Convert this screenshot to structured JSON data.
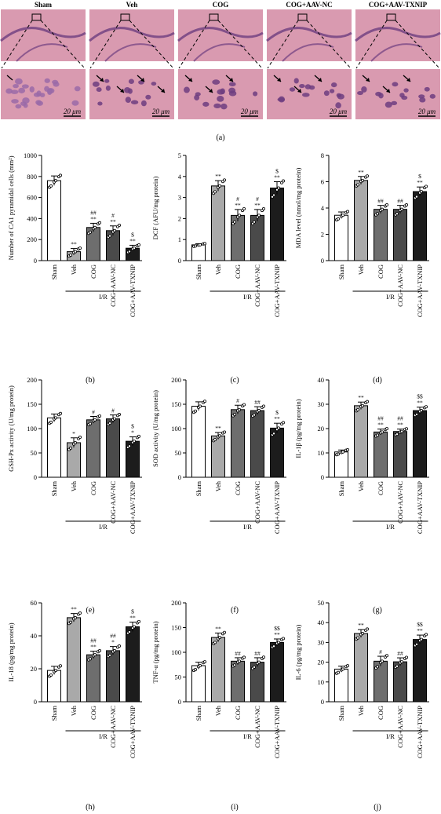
{
  "micrographs": {
    "groups": [
      "Sham",
      "Veh",
      "COG",
      "COG+AAV-NC",
      "COG+AAV-TXNIP"
    ],
    "scale_label": "20 μm",
    "panel_label": "(a)"
  },
  "colors": {
    "tissue_pink": "#d99ab0",
    "tissue_purple": "#6d3d80",
    "bar_fills": [
      "#ffffff",
      "#a9a9a9",
      "#6e6e6e",
      "#4a4a4a",
      "#1c1c1c"
    ]
  },
  "chart_data": [
    {
      "type": "bar",
      "panel": "(b)",
      "categories": [
        "Sham",
        "Veh",
        "COG",
        "COG+AAV-NC",
        "COG+AAV-TXNIP"
      ],
      "values": [
        760,
        85,
        315,
        285,
        118
      ],
      "errors": [
        45,
        30,
        40,
        45,
        28
      ],
      "significance": [
        "",
        "**",
        "##\n**",
        "#\n**",
        "$\n**"
      ],
      "ylabel": "Number of CA1 pyramidal cells (mm²)",
      "ylim": [
        0,
        1000
      ],
      "yticks": [
        0,
        200,
        400,
        600,
        800,
        1000
      ],
      "ytick_labels": [
        "0",
        "200",
        "400",
        "600",
        "800",
        "1000"
      ],
      "group_label": "I/R"
    },
    {
      "type": "bar",
      "panel": "(c)",
      "categories": [
        "Sham",
        "Veh",
        "COG",
        "COG+AAV-NC",
        "COG+AAV-TXNIP"
      ],
      "values": [
        0.75,
        3.55,
        2.15,
        2.15,
        3.45
      ],
      "errors": [
        0.05,
        0.25,
        0.28,
        0.28,
        0.3
      ],
      "significance": [
        "",
        "**",
        "#\n**",
        "#\n**",
        "$\n**"
      ],
      "ylabel": "DCF (AFU/mg protein)",
      "ylim": [
        0,
        5
      ],
      "yticks": [
        0,
        1,
        2,
        3,
        4,
        5
      ],
      "ytick_labels": [
        "0",
        "1",
        "2",
        "3",
        "4",
        "5"
      ],
      "group_label": "I/R"
    },
    {
      "type": "bar",
      "panel": "(d)",
      "categories": [
        "Sham",
        "Veh",
        "COG",
        "COG+AAV-NC",
        "COG+AAV-TXNIP"
      ],
      "values": [
        3.45,
        6.1,
        3.9,
        3.9,
        5.25
      ],
      "errors": [
        0.25,
        0.3,
        0.3,
        0.3,
        0.35
      ],
      "significance": [
        "",
        "**",
        "##",
        "##",
        "$\n**"
      ],
      "ylabel": "MDA level (nmol/mg protein)",
      "ylim": [
        0,
        8
      ],
      "yticks": [
        0,
        2,
        4,
        6,
        8
      ],
      "ytick_labels": [
        "0",
        "2",
        "4",
        "6",
        "8"
      ],
      "group_label": "I/R"
    },
    {
      "type": "bar",
      "panel": "(e)",
      "categories": [
        "Sham",
        "Veh",
        "COG",
        "COG+AAV-NC",
        "COG+AAV-TXNIP"
      ],
      "values": [
        122,
        71,
        118,
        120,
        74
      ],
      "errors": [
        8,
        10,
        7,
        8,
        9
      ],
      "significance": [
        "",
        "*",
        "#",
        "#",
        "$\n*"
      ],
      "ylabel": "GSH-Px activity (U/mg protein)",
      "ylim": [
        0,
        200
      ],
      "yticks": [
        0,
        50,
        100,
        150,
        200
      ],
      "ytick_labels": [
        "0",
        "50",
        "100",
        "150",
        "200"
      ],
      "group_label": "I/R"
    },
    {
      "type": "bar",
      "panel": "(f)",
      "categories": [
        "Sham",
        "Veh",
        "COG",
        "COG+AAV-NC",
        "COG+AAV-TXNIP"
      ],
      "values": [
        146,
        85,
        139,
        137,
        101
      ],
      "errors": [
        9,
        7,
        9,
        8,
        10
      ],
      "significance": [
        "",
        "**",
        "#",
        "##",
        "$\n**"
      ],
      "ylabel": "SOD activity (U/mg protein)",
      "ylim": [
        0,
        200
      ],
      "yticks": [
        0,
        50,
        100,
        150,
        200
      ],
      "ytick_labels": [
        "0",
        "50",
        "100",
        "150",
        "200"
      ],
      "group_label": "I/R"
    },
    {
      "type": "bar",
      "panel": "(g)",
      "categories": [
        "Sham",
        "Veh",
        "COG",
        "COG+AAV-NC",
        "COG+AAV-TXNIP"
      ],
      "values": [
        10.4,
        29.4,
        18.6,
        18.8,
        27.4
      ],
      "errors": [
        0.8,
        1.5,
        1.2,
        1.0,
        1.4
      ],
      "significance": [
        "",
        "**",
        "##\n**",
        "##\n**",
        "$$\n**"
      ],
      "ylabel": "IL-1β (pg/mg protein)",
      "ylim": [
        0,
        40
      ],
      "yticks": [
        0,
        10,
        20,
        30,
        40
      ],
      "ytick_labels": [
        "0",
        "10",
        "20",
        "30",
        "40"
      ],
      "group_label": "I/R"
    },
    {
      "type": "bar",
      "panel": "(h)",
      "categories": [
        "Sham",
        "Veh",
        "COG",
        "COG+AAV-NC",
        "COG+AAV-TXNIP"
      ],
      "values": [
        19,
        51,
        28.5,
        31,
        45.5
      ],
      "errors": [
        2.5,
        2.5,
        2.2,
        2.5,
        2.8
      ],
      "significance": [
        "",
        "**",
        "##\n**",
        "##\n*",
        "$\n**"
      ],
      "ylabel": "IL-18 (pg/mg protein)",
      "ylim": [
        0,
        60
      ],
      "yticks": [
        0,
        20,
        40,
        60
      ],
      "ytick_labels": [
        "0",
        "20",
        "40",
        "60"
      ],
      "group_label": "I/R"
    },
    {
      "type": "bar",
      "panel": "(i)",
      "categories": [
        "Sham",
        "Veh",
        "COG",
        "COG+AAV-NC",
        "COG+AAV-TXNIP"
      ],
      "values": [
        73,
        130,
        82,
        80,
        120
      ],
      "errors": [
        7,
        9,
        7,
        9,
        7
      ],
      "significance": [
        "",
        "**",
        "##",
        "##",
        "$$\n**"
      ],
      "ylabel": "TNF-α (pg/mg protein)",
      "ylim": [
        0,
        200
      ],
      "yticks": [
        0,
        50,
        100,
        150,
        200
      ],
      "ytick_labels": [
        "0",
        "50",
        "100",
        "150",
        "200"
      ],
      "group_label": "I/R"
    },
    {
      "type": "bar",
      "panel": "(j)",
      "categories": [
        "Sham",
        "Veh",
        "COG",
        "COG+AAV-NC",
        "COG+AAV-TXNIP"
      ],
      "values": [
        16.5,
        34.5,
        20.5,
        20.2,
        31.5
      ],
      "errors": [
        1.5,
        2.0,
        2.5,
        2.0,
        2.2
      ],
      "significance": [
        "",
        "**",
        "#",
        "##",
        "$$\n**"
      ],
      "ylabel": "IL-6 (pg/mg protein)",
      "ylim": [
        0,
        50
      ],
      "yticks": [
        0,
        10,
        20,
        30,
        40,
        50
      ],
      "ytick_labels": [
        "0",
        "10",
        "20",
        "30",
        "40",
        "50"
      ],
      "group_label": "I/R"
    }
  ]
}
